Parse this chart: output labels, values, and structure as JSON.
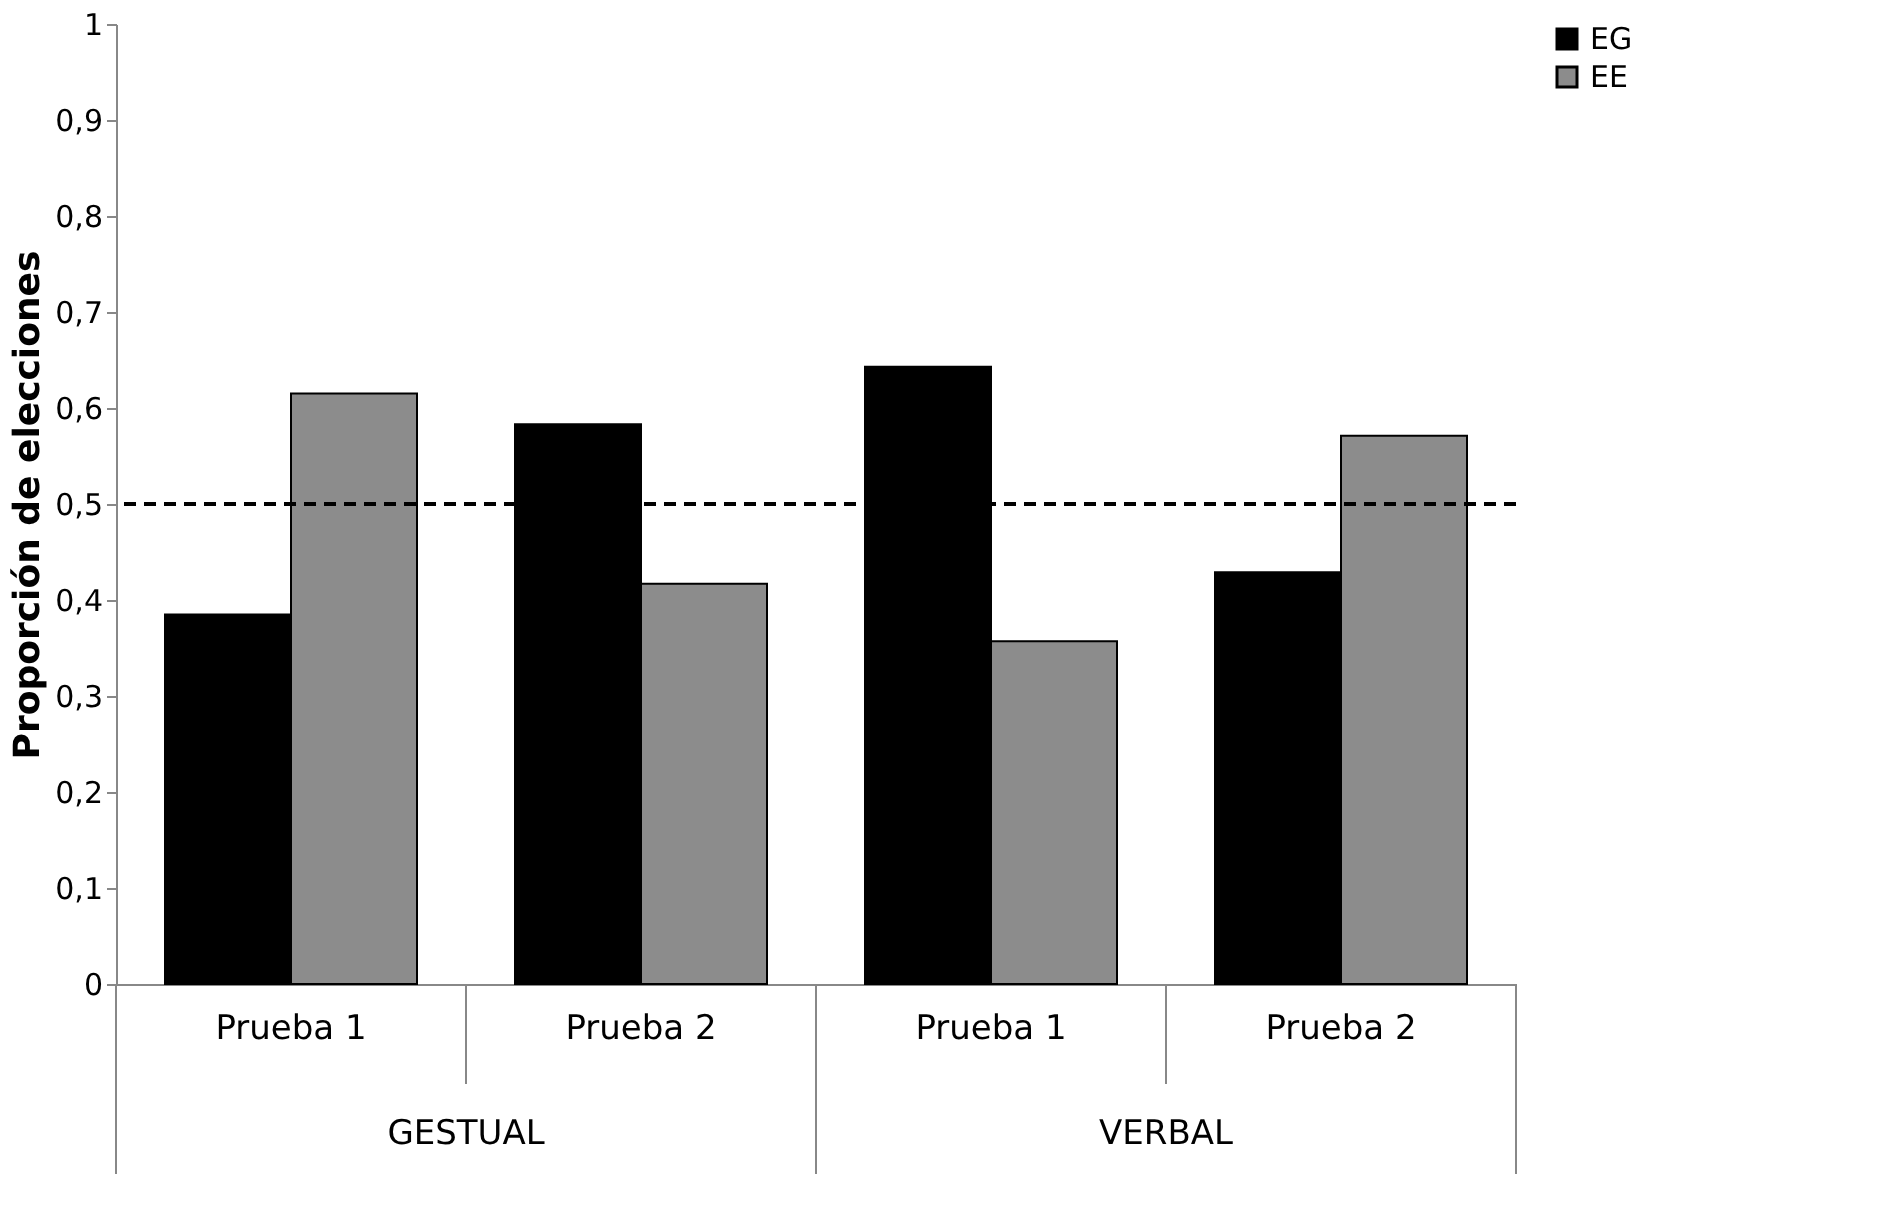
{
  "chart_data": {
    "type": "bar",
    "ylabel": "Proporción de elecciones",
    "categories": [
      "Prueba 1",
      "Prueba 2",
      "Prueba 1",
      "Prueba 2"
    ],
    "annotations": [
      "GESTUAL",
      "VERBAL"
    ],
    "series": [
      {
        "name": "EG",
        "color": "#000000",
        "values": [
          0.385,
          0.583,
          0.643,
          0.429
        ]
      },
      {
        "name": "EE",
        "color": "#8c8c8c",
        "values": [
          0.615,
          0.417,
          0.357,
          0.571
        ]
      }
    ],
    "ylim": [
      0,
      1
    ],
    "yticks": [
      0,
      {
        "value": 0.1,
        "label": "0,1"
      },
      {
        "value": 0.2,
        "label": "0,2"
      },
      {
        "value": 0.3,
        "label": "0,3"
      },
      {
        "value": 0.4,
        "label": "0,4"
      },
      {
        "value": 0.5,
        "label": "0,5"
      },
      {
        "value": 0.6,
        "label": "0,6"
      },
      {
        "value": 0.7,
        "label": "0,7"
      },
      {
        "value": 0.8,
        "label": "0,8"
      },
      {
        "value": 0.9,
        "label": "0,9"
      },
      1
    ],
    "ref_lines": [
      {
        "axis": "y",
        "value": 0.5,
        "color": "#000000",
        "line_style": "dashed"
      }
    ],
    "grid": false,
    "legend": "right"
  }
}
